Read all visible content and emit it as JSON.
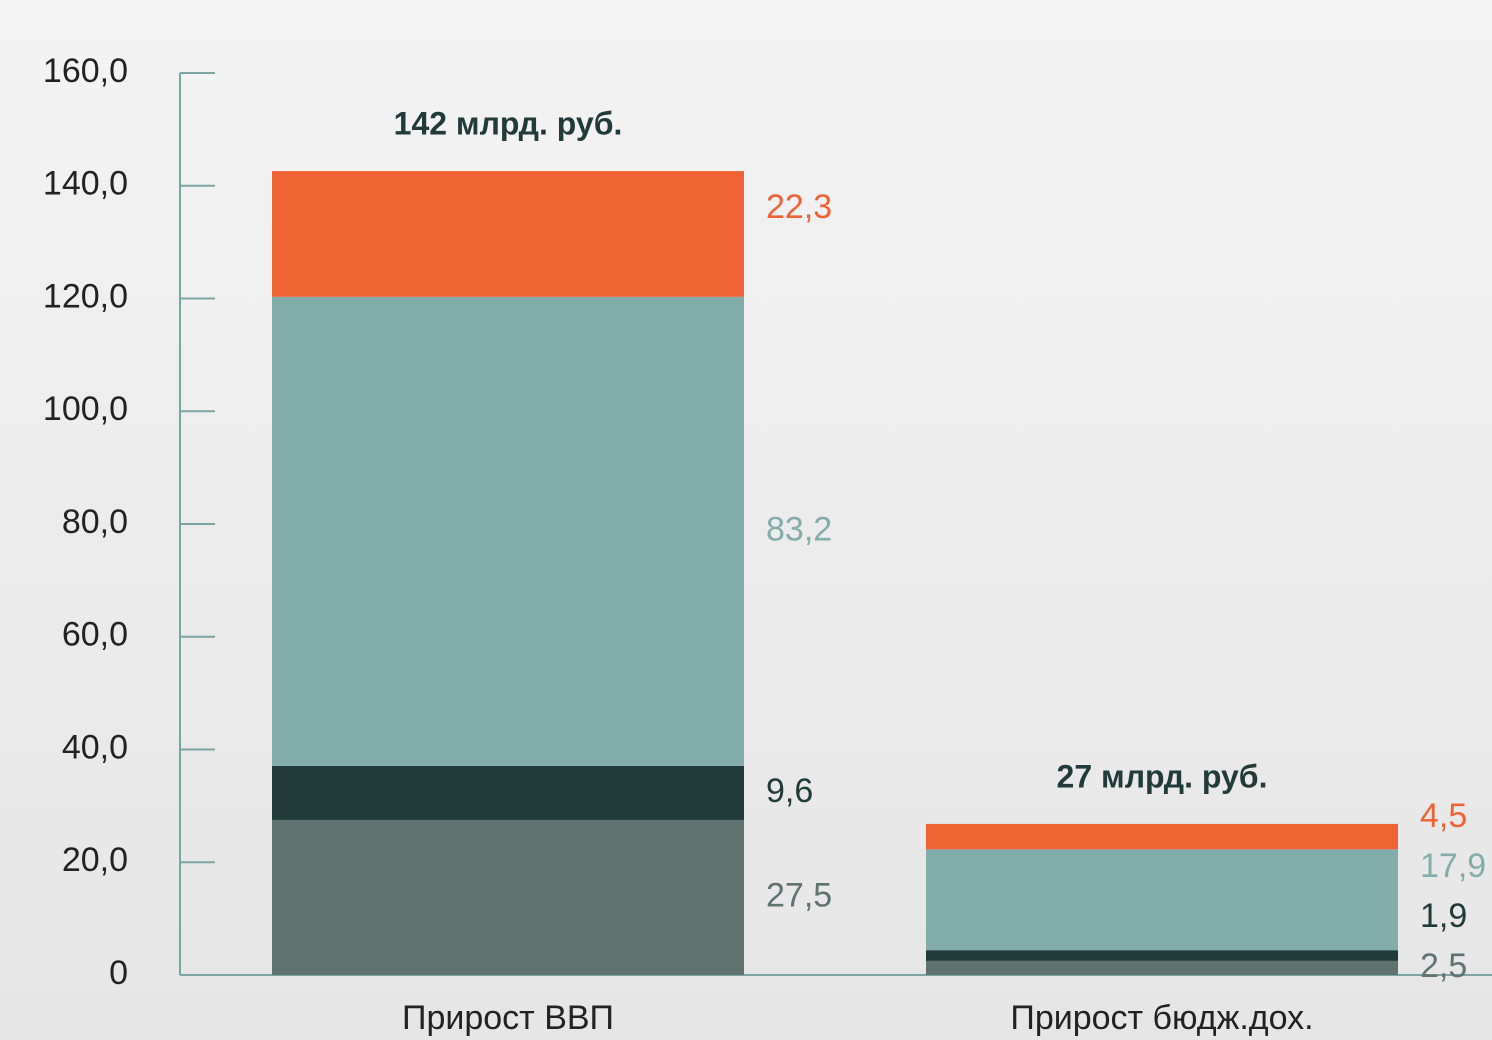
{
  "chart_data": {
    "type": "stacked_bar",
    "categories": [
      "Прирост ВВП",
      "Прирост бюдж.дох."
    ],
    "series": [
      {
        "color": "#5f7370",
        "values": [
          27.5,
          2.5
        ],
        "value_labels": [
          "27,5",
          "2,5"
        ]
      },
      {
        "color": "#213b3b",
        "values": [
          9.6,
          1.9
        ],
        "value_labels": [
          "9,6",
          "1,9"
        ]
      },
      {
        "color": "#83adab",
        "values": [
          83.2,
          17.9
        ],
        "value_labels": [
          "83,2",
          "17,9"
        ]
      },
      {
        "color": "#ef6234",
        "values": [
          22.3,
          4.5
        ],
        "value_labels": [
          "22,3",
          "4,5"
        ]
      }
    ],
    "annotations": [
      "142 млрд. руб.",
      "27 млрд. руб."
    ],
    "ylim": [
      0,
      160
    ],
    "yticks": [
      0,
      {
        "value": 20,
        "label": "20,0"
      },
      {
        "value": 40,
        "label": "40,0"
      },
      {
        "value": 60,
        "label": "60,0"
      },
      {
        "value": 80,
        "label": "80,0"
      },
      {
        "value": 100,
        "label": "100,0"
      },
      {
        "value": 120,
        "label": "120,0"
      },
      {
        "value": 140,
        "label": "140,0"
      },
      {
        "value": 160,
        "label": "160,0"
      }
    ]
  }
}
